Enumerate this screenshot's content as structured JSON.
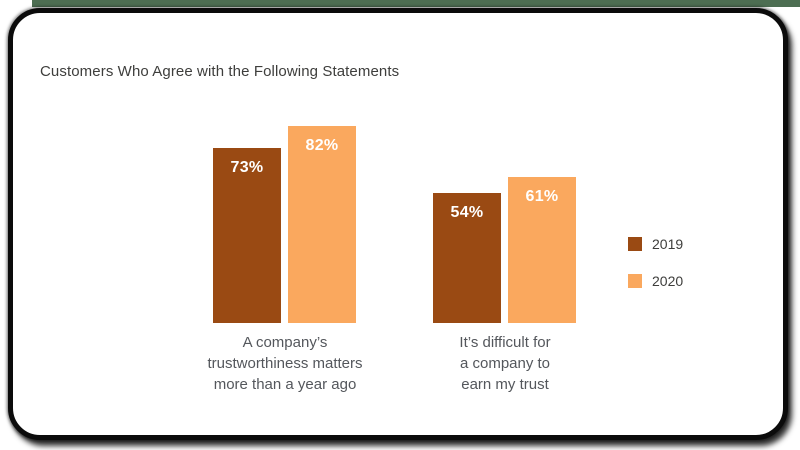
{
  "chart_data": {
    "type": "bar",
    "title": "Customers Who Agree with the Following Statements",
    "categories": [
      "A company’s trustworthiness matters more than a year ago",
      "It’s difficult for a company to earn my trust"
    ],
    "category_lines": [
      [
        "A company’s",
        "trustworthiness matters",
        "more than a year ago"
      ],
      [
        "It’s difficult for",
        "a company to",
        "earn my trust"
      ]
    ],
    "series": [
      {
        "name": "2019",
        "color": "#9A4A13",
        "values": [
          73,
          54
        ],
        "data_labels": [
          "73%",
          "54%"
        ]
      },
      {
        "name": "2020",
        "color": "#FAA85E",
        "values": [
          82,
          61
        ],
        "data_labels": [
          "82%",
          "61%"
        ]
      }
    ],
    "value_suffix": "%",
    "ylim": [
      0,
      100
    ],
    "grid": false,
    "axes_visible": false,
    "legend_position": "right",
    "data_label_position": "inside-top",
    "data_label_color": "#FFFFFF"
  },
  "colors": {
    "series_2019": "#9A4A13",
    "series_2020": "#FAA85E",
    "title_text": "#3E3E3C",
    "category_text": "#54575C",
    "value_label_text": "#FFFFFF",
    "card_background": "#FFFFFF",
    "card_border": "#0B0B0B",
    "top_strip": "#4D6E52"
  }
}
